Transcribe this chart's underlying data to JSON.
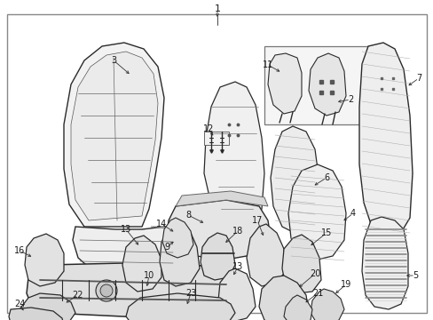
{
  "bg_color": "#ffffff",
  "border_color": "#777777",
  "line_color": "#2a2a2a",
  "text_color": "#1a1a1a",
  "fig_w": 4.89,
  "fig_h": 3.6,
  "dpi": 100
}
